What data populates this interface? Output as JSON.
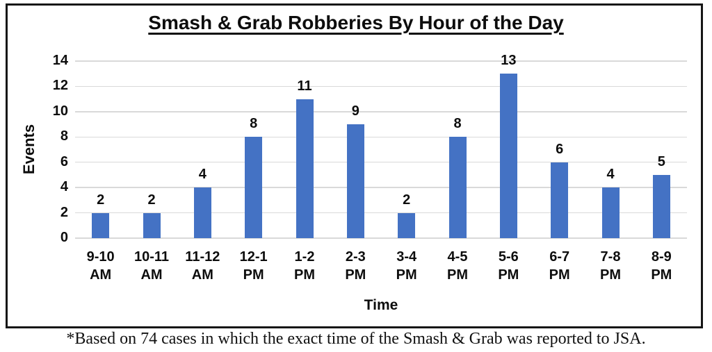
{
  "chart_data": {
    "type": "bar",
    "title": "Smash & Grab Robberies By Hour of the Day",
    "categories": [
      "9-10 AM",
      "10-11 AM",
      "11-12 AM",
      "12-1 PM",
      "1-2 PM",
      "2-3 PM",
      "3-4 PM",
      "4-5 PM",
      "5-6 PM",
      "6-7 PM",
      "7-8 PM",
      "8-9 PM"
    ],
    "values": [
      2,
      2,
      4,
      8,
      11,
      9,
      2,
      8,
      13,
      6,
      4,
      5
    ],
    "xlabel": "Time",
    "ylabel": "Events",
    "ylim": [
      0,
      14
    ],
    "yticks": [
      0,
      2,
      4,
      6,
      8,
      10,
      12,
      14
    ],
    "grid": true,
    "legend_position": "none",
    "bar_color": "#4472C4",
    "gridline_color": "#d9d9d9",
    "data_labels_shown": true
  },
  "footnote": "*Based on 74 cases in which the exact time of the Smash & Grab was reported to JSA."
}
